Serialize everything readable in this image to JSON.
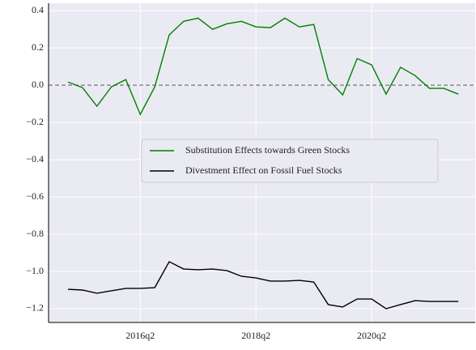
{
  "chart_data": {
    "type": "line",
    "categories": [
      null,
      null,
      null,
      null,
      null,
      "2016q2",
      null,
      null,
      null,
      null,
      null,
      null,
      null,
      "2018q2",
      null,
      null,
      null,
      null,
      null,
      null,
      null,
      "2020q2",
      null,
      null,
      null,
      null,
      null,
      null
    ],
    "series": [
      {
        "name": "Substitution Effects towards Green Stocks",
        "color": "#008000",
        "values": [
          0.017,
          -0.013,
          -0.113,
          -0.009,
          0.03,
          -0.157,
          -0.009,
          0.27,
          0.343,
          0.36,
          0.3,
          0.33,
          0.343,
          0.313,
          0.309,
          0.36,
          0.313,
          0.326,
          0.03,
          -0.052,
          0.143,
          0.109,
          -0.048,
          0.096,
          0.052,
          -0.017,
          -0.017,
          -0.048
        ]
      },
      {
        "name": "Divestment Effect on Fossil Fuel Stocks",
        "color": "#000000",
        "values": [
          -1.096,
          -1.1,
          -1.117,
          -1.104,
          -1.091,
          -1.091,
          -1.087,
          -0.948,
          -0.987,
          -0.991,
          -0.987,
          -0.996,
          -1.026,
          -1.035,
          -1.052,
          -1.052,
          -1.048,
          -1.057,
          -1.178,
          -1.191,
          -1.148,
          -1.148,
          -1.2,
          -1.178,
          -1.157,
          -1.161,
          -1.161,
          -1.161
        ]
      }
    ],
    "ylim": [
      -1.274,
      0.44
    ],
    "yticks": [
      0.4,
      0.2,
      {
        "value": 0,
        "label": "0.0"
      },
      {
        "value": -0.2,
        "label": "−0.2"
      },
      {
        "value": -0.4,
        "label": "−0.4"
      },
      {
        "value": -0.6,
        "label": "−0.6"
      },
      {
        "value": -0.8,
        "label": "−0.8"
      },
      {
        "value": -1.0,
        "label": "−1.0"
      },
      {
        "value": -1.2,
        "label": "−1.2"
      }
    ],
    "reference_line": 0,
    "grid": true,
    "legend": "center"
  }
}
